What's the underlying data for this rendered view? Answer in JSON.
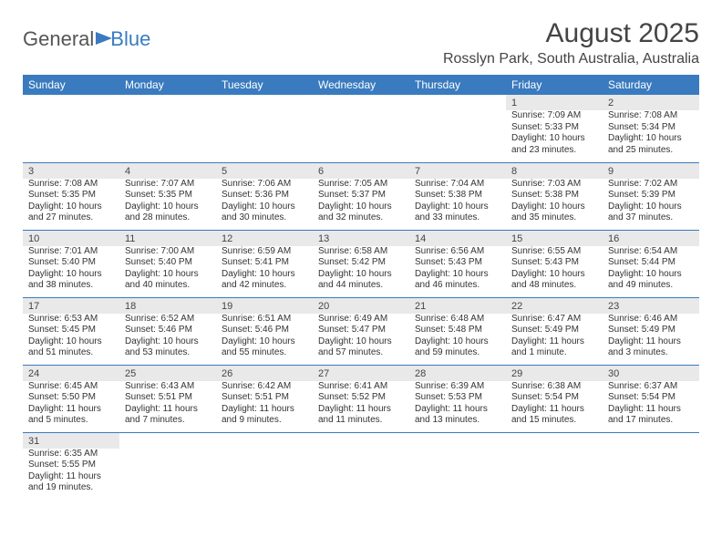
{
  "logo": {
    "general": "General",
    "blue": "Blue"
  },
  "title": "August 2025",
  "location": "Rosslyn Park, South Australia, Australia",
  "colors": {
    "accent": "#3a7bbf",
    "daynum_bg": "#e9e9e9",
    "text": "#333333"
  },
  "calendar": {
    "type": "table",
    "columns": [
      "Sunday",
      "Monday",
      "Tuesday",
      "Wednesday",
      "Thursday",
      "Friday",
      "Saturday"
    ],
    "weeks": [
      [
        null,
        null,
        null,
        null,
        null,
        {
          "n": "1",
          "sr": "Sunrise: 7:09 AM",
          "ss": "Sunset: 5:33 PM",
          "dl": "Daylight: 10 hours and 23 minutes."
        },
        {
          "n": "2",
          "sr": "Sunrise: 7:08 AM",
          "ss": "Sunset: 5:34 PM",
          "dl": "Daylight: 10 hours and 25 minutes."
        }
      ],
      [
        {
          "n": "3",
          "sr": "Sunrise: 7:08 AM",
          "ss": "Sunset: 5:35 PM",
          "dl": "Daylight: 10 hours and 27 minutes."
        },
        {
          "n": "4",
          "sr": "Sunrise: 7:07 AM",
          "ss": "Sunset: 5:35 PM",
          "dl": "Daylight: 10 hours and 28 minutes."
        },
        {
          "n": "5",
          "sr": "Sunrise: 7:06 AM",
          "ss": "Sunset: 5:36 PM",
          "dl": "Daylight: 10 hours and 30 minutes."
        },
        {
          "n": "6",
          "sr": "Sunrise: 7:05 AM",
          "ss": "Sunset: 5:37 PM",
          "dl": "Daylight: 10 hours and 32 minutes."
        },
        {
          "n": "7",
          "sr": "Sunrise: 7:04 AM",
          "ss": "Sunset: 5:38 PM",
          "dl": "Daylight: 10 hours and 33 minutes."
        },
        {
          "n": "8",
          "sr": "Sunrise: 7:03 AM",
          "ss": "Sunset: 5:38 PM",
          "dl": "Daylight: 10 hours and 35 minutes."
        },
        {
          "n": "9",
          "sr": "Sunrise: 7:02 AM",
          "ss": "Sunset: 5:39 PM",
          "dl": "Daylight: 10 hours and 37 minutes."
        }
      ],
      [
        {
          "n": "10",
          "sr": "Sunrise: 7:01 AM",
          "ss": "Sunset: 5:40 PM",
          "dl": "Daylight: 10 hours and 38 minutes."
        },
        {
          "n": "11",
          "sr": "Sunrise: 7:00 AM",
          "ss": "Sunset: 5:40 PM",
          "dl": "Daylight: 10 hours and 40 minutes."
        },
        {
          "n": "12",
          "sr": "Sunrise: 6:59 AM",
          "ss": "Sunset: 5:41 PM",
          "dl": "Daylight: 10 hours and 42 minutes."
        },
        {
          "n": "13",
          "sr": "Sunrise: 6:58 AM",
          "ss": "Sunset: 5:42 PM",
          "dl": "Daylight: 10 hours and 44 minutes."
        },
        {
          "n": "14",
          "sr": "Sunrise: 6:56 AM",
          "ss": "Sunset: 5:43 PM",
          "dl": "Daylight: 10 hours and 46 minutes."
        },
        {
          "n": "15",
          "sr": "Sunrise: 6:55 AM",
          "ss": "Sunset: 5:43 PM",
          "dl": "Daylight: 10 hours and 48 minutes."
        },
        {
          "n": "16",
          "sr": "Sunrise: 6:54 AM",
          "ss": "Sunset: 5:44 PM",
          "dl": "Daylight: 10 hours and 49 minutes."
        }
      ],
      [
        {
          "n": "17",
          "sr": "Sunrise: 6:53 AM",
          "ss": "Sunset: 5:45 PM",
          "dl": "Daylight: 10 hours and 51 minutes."
        },
        {
          "n": "18",
          "sr": "Sunrise: 6:52 AM",
          "ss": "Sunset: 5:46 PM",
          "dl": "Daylight: 10 hours and 53 minutes."
        },
        {
          "n": "19",
          "sr": "Sunrise: 6:51 AM",
          "ss": "Sunset: 5:46 PM",
          "dl": "Daylight: 10 hours and 55 minutes."
        },
        {
          "n": "20",
          "sr": "Sunrise: 6:49 AM",
          "ss": "Sunset: 5:47 PM",
          "dl": "Daylight: 10 hours and 57 minutes."
        },
        {
          "n": "21",
          "sr": "Sunrise: 6:48 AM",
          "ss": "Sunset: 5:48 PM",
          "dl": "Daylight: 10 hours and 59 minutes."
        },
        {
          "n": "22",
          "sr": "Sunrise: 6:47 AM",
          "ss": "Sunset: 5:49 PM",
          "dl": "Daylight: 11 hours and 1 minute."
        },
        {
          "n": "23",
          "sr": "Sunrise: 6:46 AM",
          "ss": "Sunset: 5:49 PM",
          "dl": "Daylight: 11 hours and 3 minutes."
        }
      ],
      [
        {
          "n": "24",
          "sr": "Sunrise: 6:45 AM",
          "ss": "Sunset: 5:50 PM",
          "dl": "Daylight: 11 hours and 5 minutes."
        },
        {
          "n": "25",
          "sr": "Sunrise: 6:43 AM",
          "ss": "Sunset: 5:51 PM",
          "dl": "Daylight: 11 hours and 7 minutes."
        },
        {
          "n": "26",
          "sr": "Sunrise: 6:42 AM",
          "ss": "Sunset: 5:51 PM",
          "dl": "Daylight: 11 hours and 9 minutes."
        },
        {
          "n": "27",
          "sr": "Sunrise: 6:41 AM",
          "ss": "Sunset: 5:52 PM",
          "dl": "Daylight: 11 hours and 11 minutes."
        },
        {
          "n": "28",
          "sr": "Sunrise: 6:39 AM",
          "ss": "Sunset: 5:53 PM",
          "dl": "Daylight: 11 hours and 13 minutes."
        },
        {
          "n": "29",
          "sr": "Sunrise: 6:38 AM",
          "ss": "Sunset: 5:54 PM",
          "dl": "Daylight: 11 hours and 15 minutes."
        },
        {
          "n": "30",
          "sr": "Sunrise: 6:37 AM",
          "ss": "Sunset: 5:54 PM",
          "dl": "Daylight: 11 hours and 17 minutes."
        }
      ],
      [
        {
          "n": "31",
          "sr": "Sunrise: 6:35 AM",
          "ss": "Sunset: 5:55 PM",
          "dl": "Daylight: 11 hours and 19 minutes."
        },
        null,
        null,
        null,
        null,
        null,
        null
      ]
    ]
  }
}
